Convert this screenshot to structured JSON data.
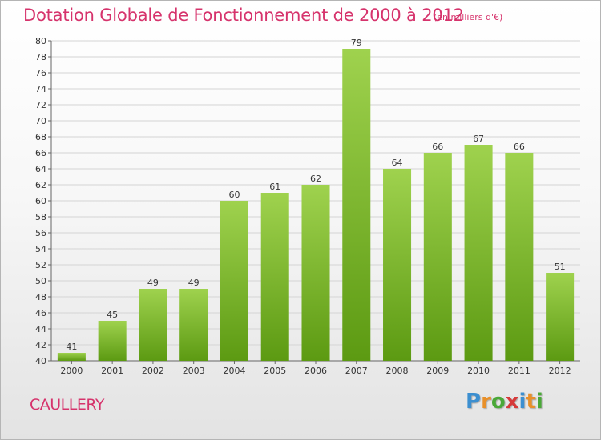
{
  "title": "Dotation Globale de Fonctionnement de 2000 à 2012",
  "subtitle": "(en milliers d'€)",
  "commune": "CAULLERY",
  "logo": {
    "letters": [
      "P",
      "r",
      "o",
      "x",
      "i",
      "t",
      "i"
    ],
    "colors": [
      "#3c8fd0",
      "#e8902a",
      "#4aa838",
      "#d63a3a",
      "#3c8fd0",
      "#e8902a",
      "#4aa838"
    ]
  },
  "colors": {
    "bar_light": "#9fd24e",
    "bar_dark": "#5c9a12",
    "title": "#d6336c"
  },
  "chart_data": {
    "type": "bar",
    "categories": [
      "2000",
      "2001",
      "2002",
      "2003",
      "2004",
      "2005",
      "2006",
      "2007",
      "2008",
      "2009",
      "2010",
      "2011",
      "2012"
    ],
    "values": [
      41,
      45,
      49,
      49,
      60,
      61,
      62,
      79,
      64,
      66,
      67,
      66,
      51
    ],
    "ylim": [
      40,
      80
    ],
    "yticks": [
      40,
      42,
      44,
      46,
      48,
      50,
      52,
      54,
      56,
      58,
      60,
      62,
      64,
      66,
      68,
      70,
      72,
      74,
      76,
      78,
      80
    ],
    "grid": true
  }
}
